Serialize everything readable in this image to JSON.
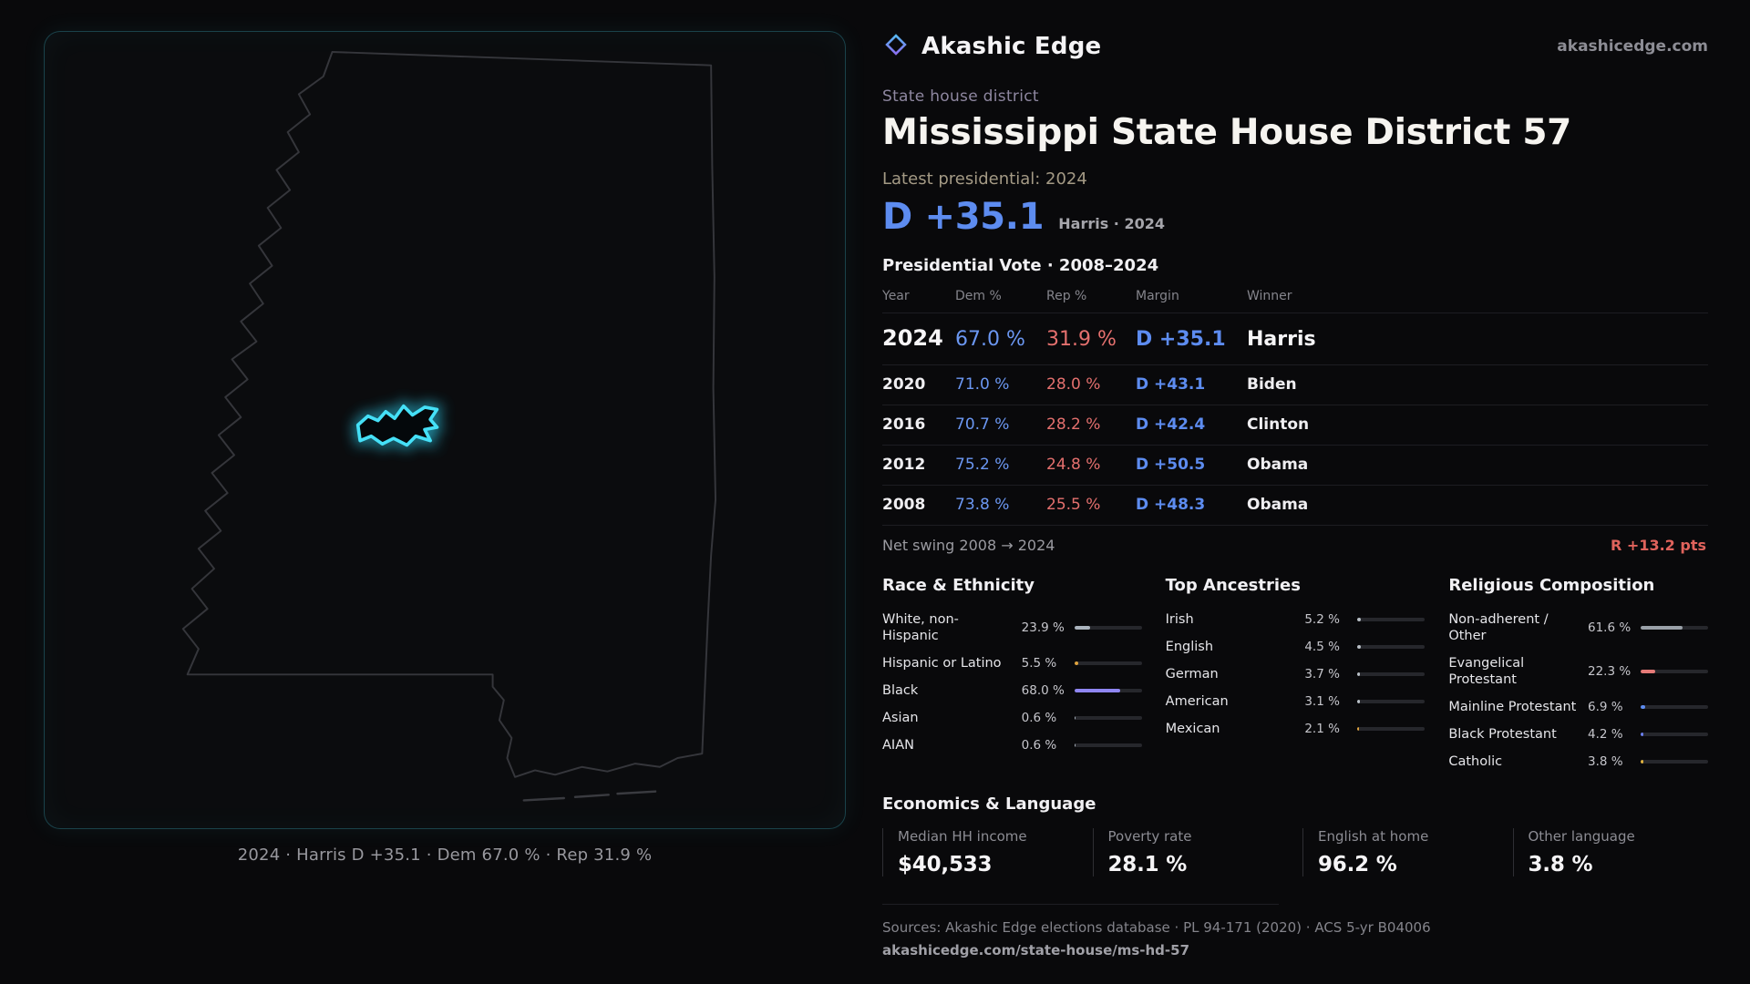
{
  "colors": {
    "dem_blue": "#5d8cf0",
    "rep_red": "#e4706e",
    "swing_red": "#e0635c",
    "accent_cyan": "#45e0f7",
    "bar_purple": "#8f86f2",
    "bar_orange": "#e0a33e",
    "bar_gold": "#e0b23e",
    "bar_gray": "#aab3bd"
  },
  "brand": {
    "name": "Akashic Edge",
    "site": "akashicedge.com"
  },
  "header": {
    "kicker": "State house district",
    "title": "Mississippi State House District 57",
    "latest_label": "Latest presidential: 2024",
    "headline_margin": "D +35.1",
    "headline_detail": "Harris · 2024"
  },
  "map": {
    "caption": "2024 · Harris D +35.1 · Dem 67.0 % · Rep 31.9 %"
  },
  "vote_table": {
    "title": "Presidential Vote · 2008–2024",
    "columns": [
      "Year",
      "Dem %",
      "Rep %",
      "Margin",
      "Winner"
    ],
    "rows": [
      {
        "year": "2024",
        "dem": "67.0 %",
        "rep": "31.9 %",
        "margin": "D +35.1",
        "winner": "Harris"
      },
      {
        "year": "2020",
        "dem": "71.0 %",
        "rep": "28.0 %",
        "margin": "D +43.1",
        "winner": "Biden"
      },
      {
        "year": "2016",
        "dem": "70.7 %",
        "rep": "28.2 %",
        "margin": "D +42.4",
        "winner": "Clinton"
      },
      {
        "year": "2012",
        "dem": "75.2 %",
        "rep": "24.8 %",
        "margin": "D +50.5",
        "winner": "Obama"
      },
      {
        "year": "2008",
        "dem": "73.8 %",
        "rep": "25.5 %",
        "margin": "D +48.3",
        "winner": "Obama"
      }
    ]
  },
  "net_swing": {
    "label": "Net swing 2008 → 2024",
    "value": "R +13.2 pts"
  },
  "race": {
    "title": "Race & Ethnicity",
    "rows": [
      {
        "label": "White, non-Hispanic",
        "value": "23.9 %",
        "pct": 23.9,
        "color": "#aab3bd"
      },
      {
        "label": "Hispanic or Latino",
        "value": "5.5 %",
        "pct": 5.5,
        "color": "#e0a33e"
      },
      {
        "label": "Black",
        "value": "68.0 %",
        "pct": 68.0,
        "color": "#8f86f2"
      },
      {
        "label": "Asian",
        "value": "0.6 %",
        "pct": 0.6,
        "color": "#aab3bd"
      },
      {
        "label": "AIAN",
        "value": "0.6 %",
        "pct": 0.6,
        "color": "#aab3bd"
      }
    ]
  },
  "ancestries": {
    "title": "Top Ancestries",
    "rows": [
      {
        "label": "Irish",
        "value": "5.2 %",
        "pct": 5.2,
        "color": "#b9c0c7"
      },
      {
        "label": "English",
        "value": "4.5 %",
        "pct": 4.5,
        "color": "#b9c0c7"
      },
      {
        "label": "German",
        "value": "3.7 %",
        "pct": 3.7,
        "color": "#b9c0c7"
      },
      {
        "label": "American",
        "value": "3.1 %",
        "pct": 3.1,
        "color": "#b9c0c7"
      },
      {
        "label": "Mexican",
        "value": "2.1 %",
        "pct": 2.1,
        "color": "#e0a33e"
      }
    ]
  },
  "religion": {
    "title": "Religious Composition",
    "rows": [
      {
        "label": "Non-adherent / Other",
        "value": "61.6 %",
        "pct": 61.6,
        "color": "#9aa1a9"
      },
      {
        "label": "Evangelical Protestant",
        "value": "22.3 %",
        "pct": 22.3,
        "color": "#e57a78"
      },
      {
        "label": "Mainline Protestant",
        "value": "6.9 %",
        "pct": 6.9,
        "color": "#5d8cf0"
      },
      {
        "label": "Black Protestant",
        "value": "4.2 %",
        "pct": 4.2,
        "color": "#6a7ff0"
      },
      {
        "label": "Catholic",
        "value": "3.8 %",
        "pct": 3.8,
        "color": "#e0b23e"
      }
    ]
  },
  "economics": {
    "title": "Economics & Language",
    "stats": [
      {
        "label": "Median HH income",
        "value": "$40,533"
      },
      {
        "label": "Poverty rate",
        "value": "28.1 %"
      },
      {
        "label": "English at home",
        "value": "96.2 %"
      },
      {
        "label": "Other language",
        "value": "3.8 %"
      }
    ]
  },
  "footer": {
    "sources": "Sources: Akashic Edge elections database · PL 94-171 (2020) · ACS 5-yr B04006",
    "permalink": "akashicedge.com/state-house/ms-hd-57"
  },
  "chart_data": [
    {
      "type": "table",
      "title": "Presidential Vote · 2008–2024",
      "columns": [
        "Year",
        "Dem %",
        "Rep %",
        "Margin",
        "Winner"
      ],
      "rows": [
        [
          2024,
          67.0,
          31.9,
          "D +35.1",
          "Harris"
        ],
        [
          2020,
          71.0,
          28.0,
          "D +43.1",
          "Biden"
        ],
        [
          2016,
          70.7,
          28.2,
          "D +42.4",
          "Clinton"
        ],
        [
          2012,
          75.2,
          24.8,
          "D +50.5",
          "Obama"
        ],
        [
          2008,
          73.8,
          25.5,
          "D +48.3",
          "Obama"
        ]
      ],
      "net_swing_2008_2024": "R +13.2 pts"
    },
    {
      "type": "bar",
      "title": "Race & Ethnicity",
      "categories": [
        "White, non-Hispanic",
        "Hispanic or Latino",
        "Black",
        "Asian",
        "AIAN"
      ],
      "values": [
        23.9,
        5.5,
        68.0,
        0.6,
        0.6
      ],
      "unit": "%",
      "xlim": [
        0,
        100
      ]
    },
    {
      "type": "bar",
      "title": "Top Ancestries",
      "categories": [
        "Irish",
        "English",
        "German",
        "American",
        "Mexican"
      ],
      "values": [
        5.2,
        4.5,
        3.7,
        3.1,
        2.1
      ],
      "unit": "%",
      "xlim": [
        0,
        100
      ]
    },
    {
      "type": "bar",
      "title": "Religious Composition",
      "categories": [
        "Non-adherent / Other",
        "Evangelical Protestant",
        "Mainline Protestant",
        "Black Protestant",
        "Catholic"
      ],
      "values": [
        61.6,
        22.3,
        6.9,
        4.2,
        3.8
      ],
      "unit": "%",
      "xlim": [
        0,
        100
      ]
    },
    {
      "type": "table",
      "title": "Economics & Language",
      "rows": [
        [
          "Median HH income",
          "$40,533"
        ],
        [
          "Poverty rate",
          "28.1 %"
        ],
        [
          "English at home",
          "96.2 %"
        ],
        [
          "Other language",
          "3.8 %"
        ]
      ]
    }
  ]
}
